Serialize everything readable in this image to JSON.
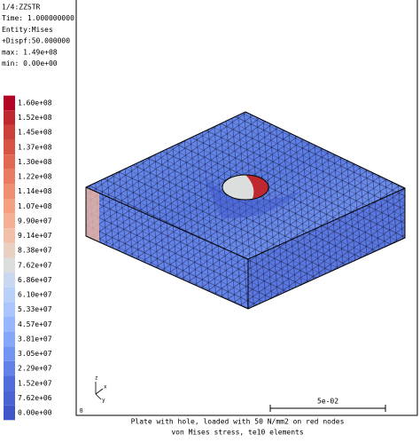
{
  "info": [
    "1/4:ZZSTR",
    "Time: 1.000000000",
    "Entity:Mises",
    "+Dispf:50.000000",
    "max: 1.49e+08",
    "min: 0.00e+00"
  ],
  "legend": {
    "labels": [
      "1.60e+08",
      "1.52e+08",
      "1.45e+08",
      "1.37e+08",
      "1.30e+08",
      "1.22e+08",
      "1.14e+08",
      "1.07e+08",
      "9.90e+07",
      "9.14e+07",
      "8.38e+07",
      "7.62e+07",
      "6.86e+07",
      "6.10e+07",
      "5.33e+07",
      "4.57e+07",
      "3.81e+07",
      "3.05e+07",
      "2.29e+07",
      "1.52e+07",
      "7.62e+06",
      "0.00e+00"
    ],
    "colors": [
      "#b40426",
      "#c0282f",
      "#cc403a",
      "#d75445",
      "#e16852",
      "#e97b61",
      "#f08e71",
      "#f49f82",
      "#f5b094",
      "#f2c0a8",
      "#e8d0c2",
      "#dcdddd",
      "#c9d7f0",
      "#b9d0f9",
      "#a8c5fe",
      "#96b7ff",
      "#84a7fc",
      "#7295f4",
      "#6282ea",
      "#516ddb",
      "#4a63d3",
      "#4055c8"
    ]
  },
  "triad": [
    "z",
    "x",
    "y"
  ],
  "scale_bar": "5e-02",
  "caption": [
    "Plate with hole, loaded with 50 N/mm2 on red nodes",
    "von Mises stress, te10 elements"
  ]
}
